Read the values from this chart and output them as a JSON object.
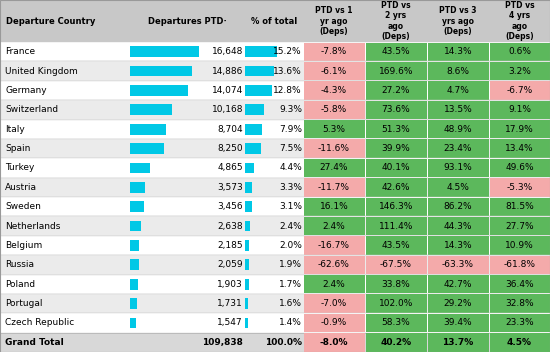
{
  "headers": [
    "Departure Country",
    "Departures PTD·",
    "% of total",
    "PTD vs 1\nyr ago\n(Deps)",
    "PTD vs\n2 yrs\nago\n(Deps)",
    "PTD vs 3\nyrs ago\n(Deps)",
    "PTD vs\n4 yrs\nago\n(Deps)"
  ],
  "rows": [
    [
      "France",
      16648,
      "15.2%",
      "-7.8%",
      "43.5%",
      "14.3%",
      "0.6%"
    ],
    [
      "United Kingdom",
      14886,
      "13.6%",
      "-6.1%",
      "169.6%",
      "8.6%",
      "3.2%"
    ],
    [
      "Germany",
      14074,
      "12.8%",
      "-4.3%",
      "27.2%",
      "4.7%",
      "-6.7%"
    ],
    [
      "Switzerland",
      10168,
      "9.3%",
      "-5.8%",
      "73.6%",
      "13.5%",
      "9.1%"
    ],
    [
      "Italy",
      8704,
      "7.9%",
      "5.3%",
      "51.3%",
      "48.9%",
      "17.9%"
    ],
    [
      "Spain",
      8250,
      "7.5%",
      "-11.6%",
      "39.9%",
      "23.4%",
      "13.4%"
    ],
    [
      "Turkey",
      4865,
      "4.4%",
      "27.4%",
      "40.1%",
      "93.1%",
      "49.6%"
    ],
    [
      "Austria",
      3573,
      "3.3%",
      "-11.7%",
      "42.6%",
      "4.5%",
      "-5.3%"
    ],
    [
      "Sweden",
      3456,
      "3.1%",
      "16.1%",
      "146.3%",
      "86.2%",
      "81.5%"
    ],
    [
      "Netherlands",
      2638,
      "2.4%",
      "2.4%",
      "111.4%",
      "44.3%",
      "27.7%"
    ],
    [
      "Belgium",
      2185,
      "2.0%",
      "-16.7%",
      "43.5%",
      "14.3%",
      "10.9%"
    ],
    [
      "Russia",
      2059,
      "1.9%",
      "-62.6%",
      "-67.5%",
      "-63.3%",
      "-61.8%"
    ],
    [
      "Poland",
      1903,
      "1.7%",
      "2.4%",
      "33.8%",
      "42.7%",
      "36.4%"
    ],
    [
      "Portugal",
      1731,
      "1.6%",
      "-7.0%",
      "102.0%",
      "29.2%",
      "32.8%"
    ],
    [
      "Czech Republic",
      1547,
      "1.4%",
      "-0.9%",
      "58.3%",
      "39.4%",
      "23.3%"
    ]
  ],
  "grand_total": [
    "Grand Total",
    "109,838",
    "100.0%",
    "-8.0%",
    "40.2%",
    "13.7%",
    "4.5%"
  ],
  "max_departures": 16648,
  "bar_color": "#00C8E6",
  "header_bg": "#C8C8C8",
  "row_bg_light": "#FFFFFF",
  "row_bg_dark": "#EBEBEB",
  "total_bg": "#D8D8D8",
  "green_bg": "#5CB85C",
  "red_bg": "#F4AAAA",
  "fig_w": 5.5,
  "fig_h": 3.52,
  "dpi": 100
}
